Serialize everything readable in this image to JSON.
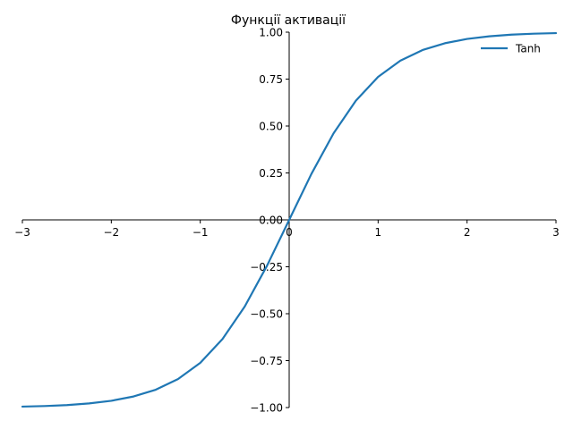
{
  "chart_data": {
    "type": "line",
    "title": "Функції активації",
    "xlabel": "",
    "ylabel": "",
    "xlim": [
      -3,
      3
    ],
    "ylim": [
      -1,
      1
    ],
    "x_ticks": [
      -3,
      -2,
      -1,
      0,
      1,
      2,
      3
    ],
    "x_tick_labels": [
      "−3",
      "−2",
      "−1",
      "0",
      "1",
      "2",
      "3"
    ],
    "y_ticks": [
      -1,
      -0.75,
      -0.5,
      -0.25,
      0,
      0.25,
      0.5,
      0.75,
      1
    ],
    "y_tick_labels": [
      "−1.00",
      "−0.75",
      "−0.50",
      "−0.25",
      "0.00",
      "0.25",
      "0.50",
      "0.75",
      "1.00"
    ],
    "grid": false,
    "spines": "centered at origin",
    "legend_position": "top-right",
    "series": [
      {
        "name": "Tanh",
        "color": "#1f77b4",
        "x": [
          -3,
          -2.75,
          -2.5,
          -2.25,
          -2,
          -1.75,
          -1.5,
          -1.25,
          -1,
          -0.75,
          -0.5,
          -0.25,
          0,
          0.25,
          0.5,
          0.75,
          1,
          1.25,
          1.5,
          1.75,
          2,
          2.25,
          2.5,
          2.75,
          3
        ],
        "y": [
          -0.995,
          -0.992,
          -0.987,
          -0.978,
          -0.964,
          -0.941,
          -0.905,
          -0.848,
          -0.762,
          -0.635,
          -0.462,
          -0.245,
          0,
          0.245,
          0.462,
          0.635,
          0.762,
          0.848,
          0.905,
          0.941,
          0.964,
          0.978,
          0.987,
          0.992,
          0.995
        ]
      }
    ]
  }
}
